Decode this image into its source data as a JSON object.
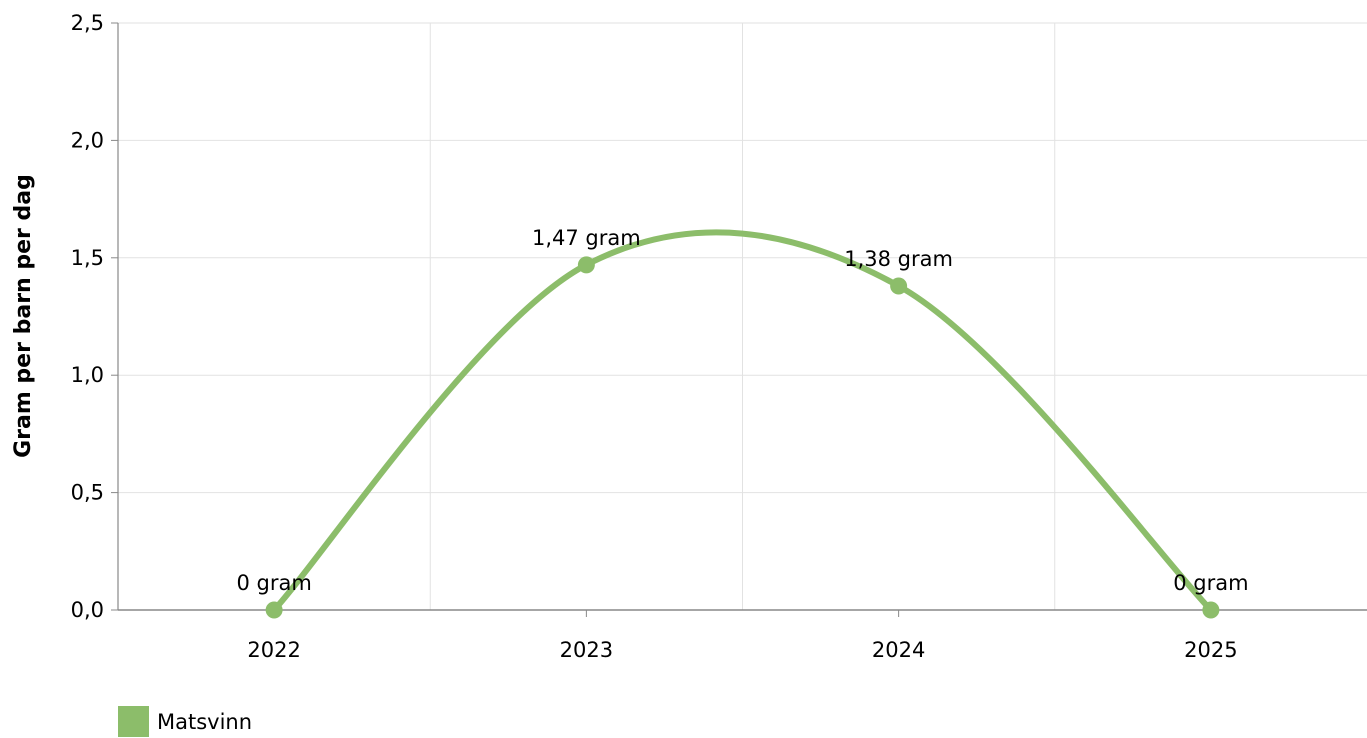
{
  "chart_data": {
    "type": "line",
    "ylabel": "Gram per barn per dag",
    "xlabel": "",
    "categories": [
      "2022",
      "2023",
      "2024",
      "2025"
    ],
    "ylim": [
      0,
      2.5
    ],
    "y_ticks": [
      "0,0",
      "0,5",
      "1,0",
      "1,5",
      "2,0",
      "2,5"
    ],
    "y_tick_values": [
      0,
      0.5,
      1.0,
      1.5,
      2.0,
      2.5
    ],
    "grid": true,
    "legend_position": "bottom-left",
    "series": [
      {
        "name": "Matsvinn",
        "color": "#8cbd6a",
        "values": [
          0,
          1.47,
          1.38,
          0
        ],
        "data_labels": [
          "0 gram",
          "1,47 gram",
          "1,38 gram",
          "0 gram"
        ]
      }
    ]
  }
}
